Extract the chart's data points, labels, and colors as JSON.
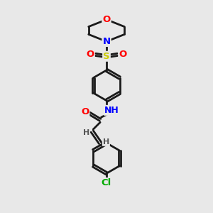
{
  "bg_color": "#e8e8e8",
  "bond_color": "#1a1a1a",
  "N_color": "#0000ff",
  "O_color": "#ff0000",
  "S_color": "#cccc00",
  "Cl_color": "#00aa00",
  "H_color": "#555555",
  "line_width": 2.0,
  "fig_size": [
    3.0,
    3.0
  ],
  "dpi": 100,
  "xlim": [
    0,
    10
  ],
  "ylim": [
    0,
    10
  ]
}
